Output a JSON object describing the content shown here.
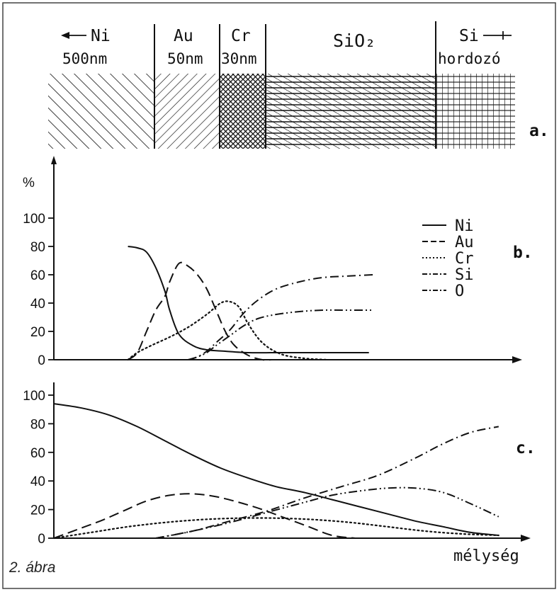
{
  "layer_diagram": {
    "panel_label": "a.",
    "layers": [
      {
        "id": "ni",
        "name": "Ni",
        "thickness": "500nm",
        "arrow": "left"
      },
      {
        "id": "au",
        "name": "Au",
        "thickness": "50nm"
      },
      {
        "id": "cr",
        "name": "Cr",
        "thickness": "30nm"
      },
      {
        "id": "sio2",
        "name": "SiO₂",
        "thickness": ""
      },
      {
        "id": "si",
        "name": "Si",
        "thickness": "hordozó",
        "arrow": "right"
      }
    ]
  },
  "chart_data": [
    {
      "type": "line",
      "panel_label": "b.",
      "ylabel": "%",
      "ylim": [
        0,
        100
      ],
      "yticks": [
        0,
        20,
        40,
        60,
        80,
        100
      ],
      "xlim": [
        0,
        100
      ],
      "legend_position": "top-right",
      "series": [
        {
          "name": "Ni",
          "style": "solid",
          "x": [
            16,
            18,
            20,
            22,
            24,
            25,
            27,
            30,
            33,
            37,
            42,
            48,
            55,
            61,
            68
          ],
          "y": [
            80,
            79,
            76,
            65,
            48,
            35,
            18,
            10,
            7,
            6,
            5,
            5,
            5,
            5,
            5
          ]
        },
        {
          "name": "Au",
          "style": "dashed",
          "x": [
            16,
            18,
            20,
            22,
            24,
            25,
            27,
            29,
            31,
            33,
            35,
            37,
            39,
            42,
            45,
            47
          ],
          "y": [
            0,
            5,
            20,
            35,
            45,
            55,
            68,
            66,
            60,
            50,
            35,
            20,
            10,
            3,
            0,
            0
          ]
        },
        {
          "name": "Cr",
          "style": "dotted",
          "x": [
            16,
            18,
            21,
            25,
            29,
            33,
            36,
            38,
            40,
            42,
            45,
            49,
            54,
            59
          ],
          "y": [
            0,
            5,
            10,
            16,
            23,
            32,
            40,
            41,
            37,
            25,
            12,
            4,
            1,
            0
          ]
        },
        {
          "name": "Si",
          "style": "dashdot",
          "x": [
            29,
            31,
            33,
            35,
            38,
            41,
            44,
            48,
            53,
            58,
            63,
            69
          ],
          "y": [
            0,
            2,
            6,
            12,
            21,
            33,
            42,
            50,
            55,
            58,
            59,
            60
          ]
        },
        {
          "name": "O",
          "style": "dashdotdot",
          "x": [
            29,
            31,
            33,
            35,
            38,
            41,
            44,
            48,
            53,
            58,
            63,
            69
          ],
          "y": [
            0,
            2,
            5,
            10,
            17,
            24,
            29,
            32,
            34,
            35,
            35,
            35
          ]
        }
      ]
    },
    {
      "type": "line",
      "panel_label": "c.",
      "xlabel": "mélység",
      "ylim": [
        0,
        100
      ],
      "yticks": [
        0,
        20,
        40,
        60,
        80,
        100
      ],
      "xlim": [
        0,
        100
      ],
      "series": [
        {
          "name": "Ni",
          "style": "solid",
          "x": [
            0,
            6,
            12,
            18,
            24,
            30,
            36,
            42,
            48,
            54,
            60,
            66,
            72,
            78,
            84,
            90,
            96
          ],
          "y": [
            94,
            91,
            86,
            78,
            68,
            58,
            49,
            42,
            36,
            32,
            27,
            22,
            17,
            12,
            8,
            4,
            2
          ]
        },
        {
          "name": "Au",
          "style": "dashed",
          "x": [
            0,
            5,
            10,
            15,
            20,
            25,
            30,
            35,
            40,
            45,
            50,
            55,
            60,
            65
          ],
          "y": [
            0,
            6,
            12,
            19,
            26,
            30,
            31,
            29,
            25,
            20,
            14,
            8,
            2,
            0
          ]
        },
        {
          "name": "Cr",
          "style": "dotted",
          "x": [
            0,
            8,
            16,
            24,
            32,
            40,
            48,
            56,
            64,
            72,
            80,
            88,
            96
          ],
          "y": [
            0,
            4,
            8,
            11,
            13,
            14,
            14,
            13,
            11,
            8,
            5,
            3,
            2
          ]
        },
        {
          "name": "Si",
          "style": "dashdot",
          "x": [
            22,
            30,
            38,
            46,
            54,
            62,
            70,
            78,
            84,
            90,
            96
          ],
          "y": [
            0,
            5,
            12,
            19,
            28,
            36,
            44,
            56,
            66,
            74,
            78
          ]
        },
        {
          "name": "O",
          "style": "dashdotdot",
          "x": [
            22,
            30,
            38,
            46,
            54,
            60,
            66,
            72,
            78,
            84,
            90,
            96
          ],
          "y": [
            0,
            5,
            11,
            18,
            25,
            30,
            33,
            35,
            35,
            32,
            24,
            15
          ]
        }
      ]
    }
  ],
  "figure_caption": "2. ábra"
}
